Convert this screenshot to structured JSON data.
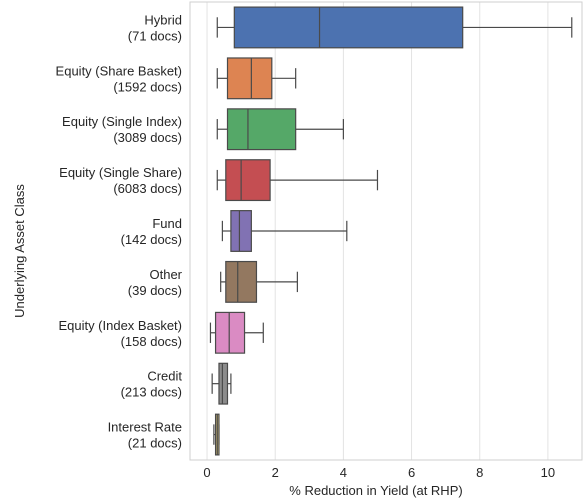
{
  "chart_data": {
    "type": "boxplot",
    "orientation": "horizontal",
    "title": "",
    "xlabel": "% Reduction in Yield (at RHP)",
    "ylabel": "Underlying Asset Class",
    "xlim": [
      -0.5,
      11
    ],
    "xticks": [
      0,
      2,
      4,
      6,
      8,
      10
    ],
    "grid": true,
    "categories": [
      {
        "name": "Hybrid",
        "count_label": "(71 docs)",
        "color": "#4c72b0",
        "whisker_low": 0.3,
        "q1": 0.8,
        "median": 3.3,
        "q3": 7.5,
        "whisker_high": 10.7
      },
      {
        "name": "Equity (Share Basket)",
        "count_label": "(1592 docs)",
        "color": "#dd8452",
        "whisker_low": 0.3,
        "q1": 0.6,
        "median": 1.3,
        "q3": 1.9,
        "whisker_high": 2.6
      },
      {
        "name": "Equity (Single Index)",
        "count_label": "(3089 docs)",
        "color": "#55a868",
        "whisker_low": 0.3,
        "q1": 0.6,
        "median": 1.2,
        "q3": 2.6,
        "whisker_high": 4.0
      },
      {
        "name": "Equity (Single Share)",
        "count_label": "(6083 docs)",
        "color": "#c44e52",
        "whisker_low": 0.3,
        "q1": 0.55,
        "median": 1.0,
        "q3": 1.85,
        "whisker_high": 5.0
      },
      {
        "name": "Fund",
        "count_label": "(142 docs)",
        "color": "#8172b3",
        "whisker_low": 0.45,
        "q1": 0.7,
        "median": 0.95,
        "q3": 1.3,
        "whisker_high": 4.1
      },
      {
        "name": "Other",
        "count_label": "(39 docs)",
        "color": "#937860",
        "whisker_low": 0.4,
        "q1": 0.55,
        "median": 0.9,
        "q3": 1.45,
        "whisker_high": 2.65
      },
      {
        "name": "Equity (Index Basket)",
        "count_label": "(158 docs)",
        "color": "#da8bc3",
        "whisker_low": 0.1,
        "q1": 0.25,
        "median": 0.65,
        "q3": 1.1,
        "whisker_high": 1.65
      },
      {
        "name": "Credit",
        "count_label": "(213 docs)",
        "color": "#8c8c8c",
        "whisker_low": 0.15,
        "q1": 0.35,
        "median": 0.45,
        "q3": 0.6,
        "whisker_high": 0.7
      },
      {
        "name": "Interest Rate",
        "count_label": "(21 docs)",
        "color": "#ccb974",
        "whisker_low": 0.2,
        "q1": 0.25,
        "median": 0.3,
        "q3": 0.35,
        "whisker_high": 0.35
      }
    ]
  }
}
